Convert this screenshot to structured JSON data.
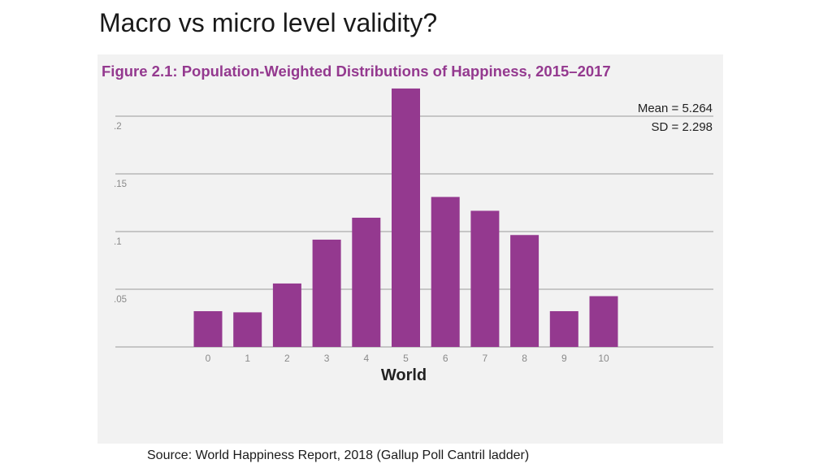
{
  "slide": {
    "title": "Macro vs micro level validity?",
    "source": "Source: World Happiness Report, 2018  (Gallup Poll Cantril ladder)"
  },
  "colors": {
    "bar": "#94398f",
    "figure_title": "#94398f",
    "panel_bg": "#f2f2f2",
    "gridline": "#9a9a9a",
    "tick_text": "#8a8a8a"
  },
  "chart_data": {
    "type": "bar",
    "title": "Figure 2.1: Population-Weighted Distributions of Happiness, 2015–2017",
    "xlabel": "World",
    "ylabel": "",
    "categories": [
      "0",
      "1",
      "2",
      "3",
      "4",
      "5",
      "6",
      "7",
      "8",
      "9",
      "10"
    ],
    "values": [
      0.031,
      0.03,
      0.055,
      0.093,
      0.112,
      0.224,
      0.13,
      0.118,
      0.097,
      0.031,
      0.044
    ],
    "yticks": [
      ".05",
      ".1",
      ".15",
      ".2"
    ],
    "ytick_values": [
      0.05,
      0.1,
      0.15,
      0.2
    ],
    "ylim": [
      0,
      0.225
    ],
    "grid": true,
    "annotations": [
      "Mean = 5.264",
      "SD = 2.298"
    ]
  }
}
